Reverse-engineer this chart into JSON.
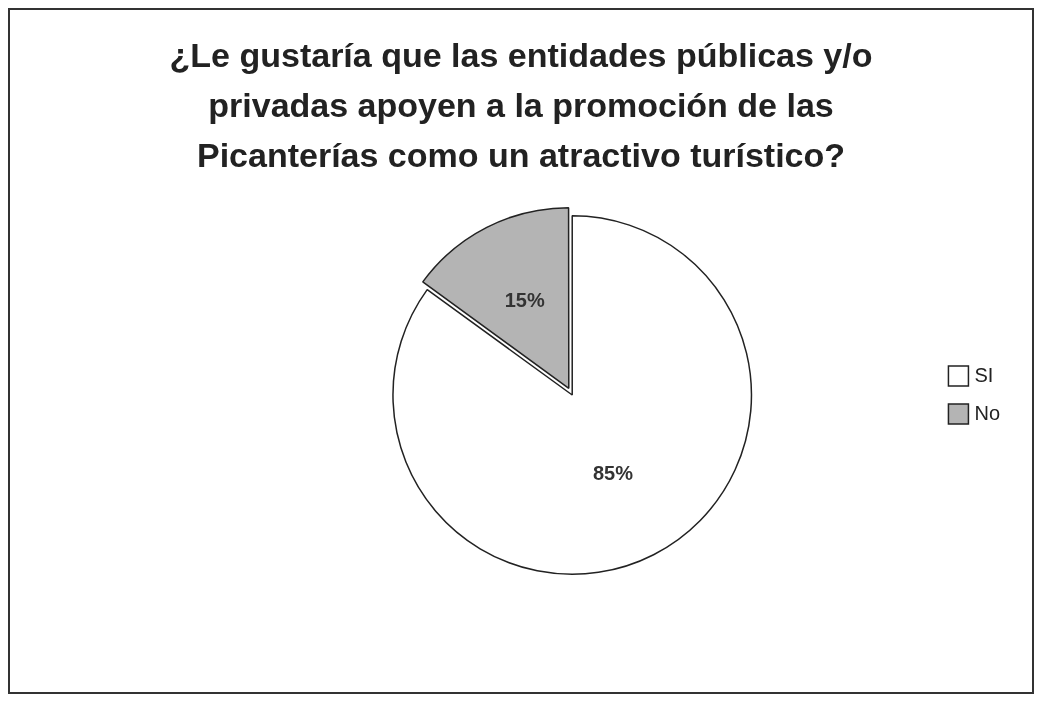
{
  "chart_data": {
    "type": "pie",
    "title": "¿Le gustaría que las entidades públicas y/o privadas apoyen a la promoción de las Picanterías como un atractivo turístico?",
    "categories": [
      "SI",
      "No"
    ],
    "values": [
      85,
      15
    ],
    "colors": [
      "#ffffff",
      "#b4b4b4"
    ],
    "value_labels": [
      "85%",
      "15%"
    ],
    "legend": "right"
  }
}
